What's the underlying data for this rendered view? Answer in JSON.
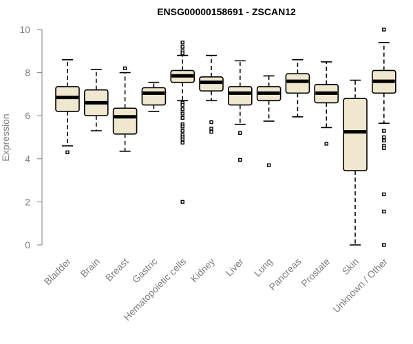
{
  "chart_data": {
    "type": "boxplot",
    "title": "ENSG00000158691 - ZSCAN12",
    "xlabel": "",
    "ylabel": "Expression",
    "ylim": [
      0,
      10
    ],
    "yticks": [
      0,
      2,
      4,
      6,
      8,
      10
    ],
    "grid": false,
    "categories": [
      "Bladder",
      "Brain",
      "Breast",
      "Gastric",
      "Hematopoietic cells",
      "Kidney",
      "Liver",
      "Lung",
      "Pancreas",
      "Prostate",
      "Skin",
      "Unknown / Other"
    ],
    "series": [
      {
        "category": "Bladder",
        "whisker_low": 4.6,
        "q1": 6.2,
        "median": 6.85,
        "q3": 7.35,
        "whisker_high": 8.6,
        "outliers": [
          4.3
        ]
      },
      {
        "category": "Brain",
        "whisker_low": 5.3,
        "q1": 6.0,
        "median": 6.6,
        "q3": 7.2,
        "whisker_high": 8.15,
        "outliers": []
      },
      {
        "category": "Breast",
        "whisker_low": 4.35,
        "q1": 5.15,
        "median": 5.95,
        "q3": 6.35,
        "whisker_high": 8.0,
        "outliers": [
          8.2
        ]
      },
      {
        "category": "Gastric",
        "whisker_low": 6.2,
        "q1": 6.5,
        "median": 7.05,
        "q3": 7.3,
        "whisker_high": 7.55,
        "outliers": []
      },
      {
        "category": "Hematopoietic cells",
        "whisker_low": 6.7,
        "q1": 7.55,
        "median": 7.85,
        "q3": 8.1,
        "whisker_high": 8.8,
        "outliers": [
          9.4,
          9.2,
          9.0,
          8.9,
          6.6,
          6.5,
          6.3,
          6.1,
          5.9,
          5.6,
          5.5,
          5.3,
          5.1,
          5.0,
          4.9,
          4.75,
          2.0
        ]
      },
      {
        "category": "Kidney",
        "whisker_low": 6.7,
        "q1": 7.15,
        "median": 7.55,
        "q3": 7.8,
        "whisker_high": 8.8,
        "outliers": [
          5.7,
          5.4,
          5.25
        ]
      },
      {
        "category": "Liver",
        "whisker_low": 5.6,
        "q1": 6.5,
        "median": 7.05,
        "q3": 7.35,
        "whisker_high": 8.55,
        "outliers": [
          5.2,
          3.95
        ]
      },
      {
        "category": "Lung",
        "whisker_low": 5.75,
        "q1": 6.7,
        "median": 7.05,
        "q3": 7.35,
        "whisker_high": 7.85,
        "outliers": [
          3.7
        ]
      },
      {
        "category": "Pancreas",
        "whisker_low": 5.95,
        "q1": 7.05,
        "median": 7.6,
        "q3": 7.95,
        "whisker_high": 8.6,
        "outliers": []
      },
      {
        "category": "Prostate",
        "whisker_low": 5.45,
        "q1": 6.6,
        "median": 7.05,
        "q3": 7.45,
        "whisker_high": 8.5,
        "outliers": [
          4.7
        ]
      },
      {
        "category": "Skin",
        "whisker_low": 0.0,
        "q1": 3.45,
        "median": 5.25,
        "q3": 6.8,
        "whisker_high": 7.65,
        "outliers": []
      },
      {
        "category": "Unknown / Other",
        "whisker_low": 5.65,
        "q1": 7.05,
        "median": 7.6,
        "q3": 8.1,
        "whisker_high": 9.4,
        "outliers": [
          10.0,
          5.3,
          5.0,
          4.85,
          4.6,
          4.5,
          2.35,
          1.55,
          0.0
        ]
      }
    ]
  }
}
